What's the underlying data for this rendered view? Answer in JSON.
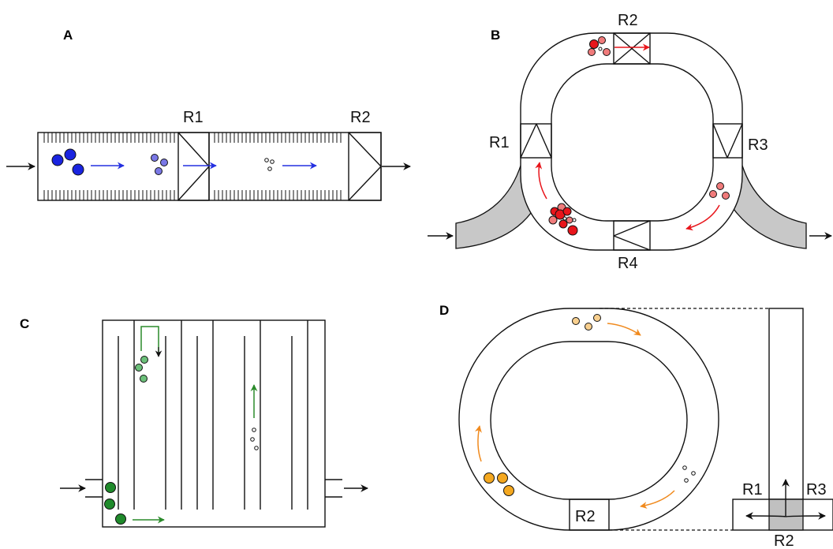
{
  "panels": {
    "a": {
      "label": "A",
      "reactors": [
        {
          "label": "R1"
        },
        {
          "label": "R2"
        }
      ]
    },
    "b": {
      "label": "B",
      "reactors": [
        {
          "label": "R1"
        },
        {
          "label": "R2"
        },
        {
          "label": "R3"
        },
        {
          "label": "R4"
        }
      ]
    },
    "c": {
      "label": "C"
    },
    "d": {
      "label": "D",
      "reactors": [
        {
          "label": "R1"
        },
        {
          "label": "R2"
        },
        {
          "label": "R3"
        }
      ],
      "ring_reactor_label": "R2"
    }
  },
  "colors": {
    "stroke": "#111111",
    "panel_a_particles": [
      "#1a24e0",
      "#7a78e6",
      "#ffffff"
    ],
    "panel_a_arrows": "#2430e0",
    "panel_b_particles": [
      "#e8151b",
      "#f07b7b"
    ],
    "panel_b_arrows": "#e8151b",
    "panel_c_particles": [
      "#1f8a2b",
      "#6cc07a",
      "#ffffff"
    ],
    "panel_c_arrows": "#2a8a2a",
    "panel_d_particles": [
      "#f4a820",
      "#f8cf8e",
      "#ffffff"
    ],
    "panel_d_arrows": "#f08a1e",
    "inlet_fill": "#c8c8c8"
  }
}
